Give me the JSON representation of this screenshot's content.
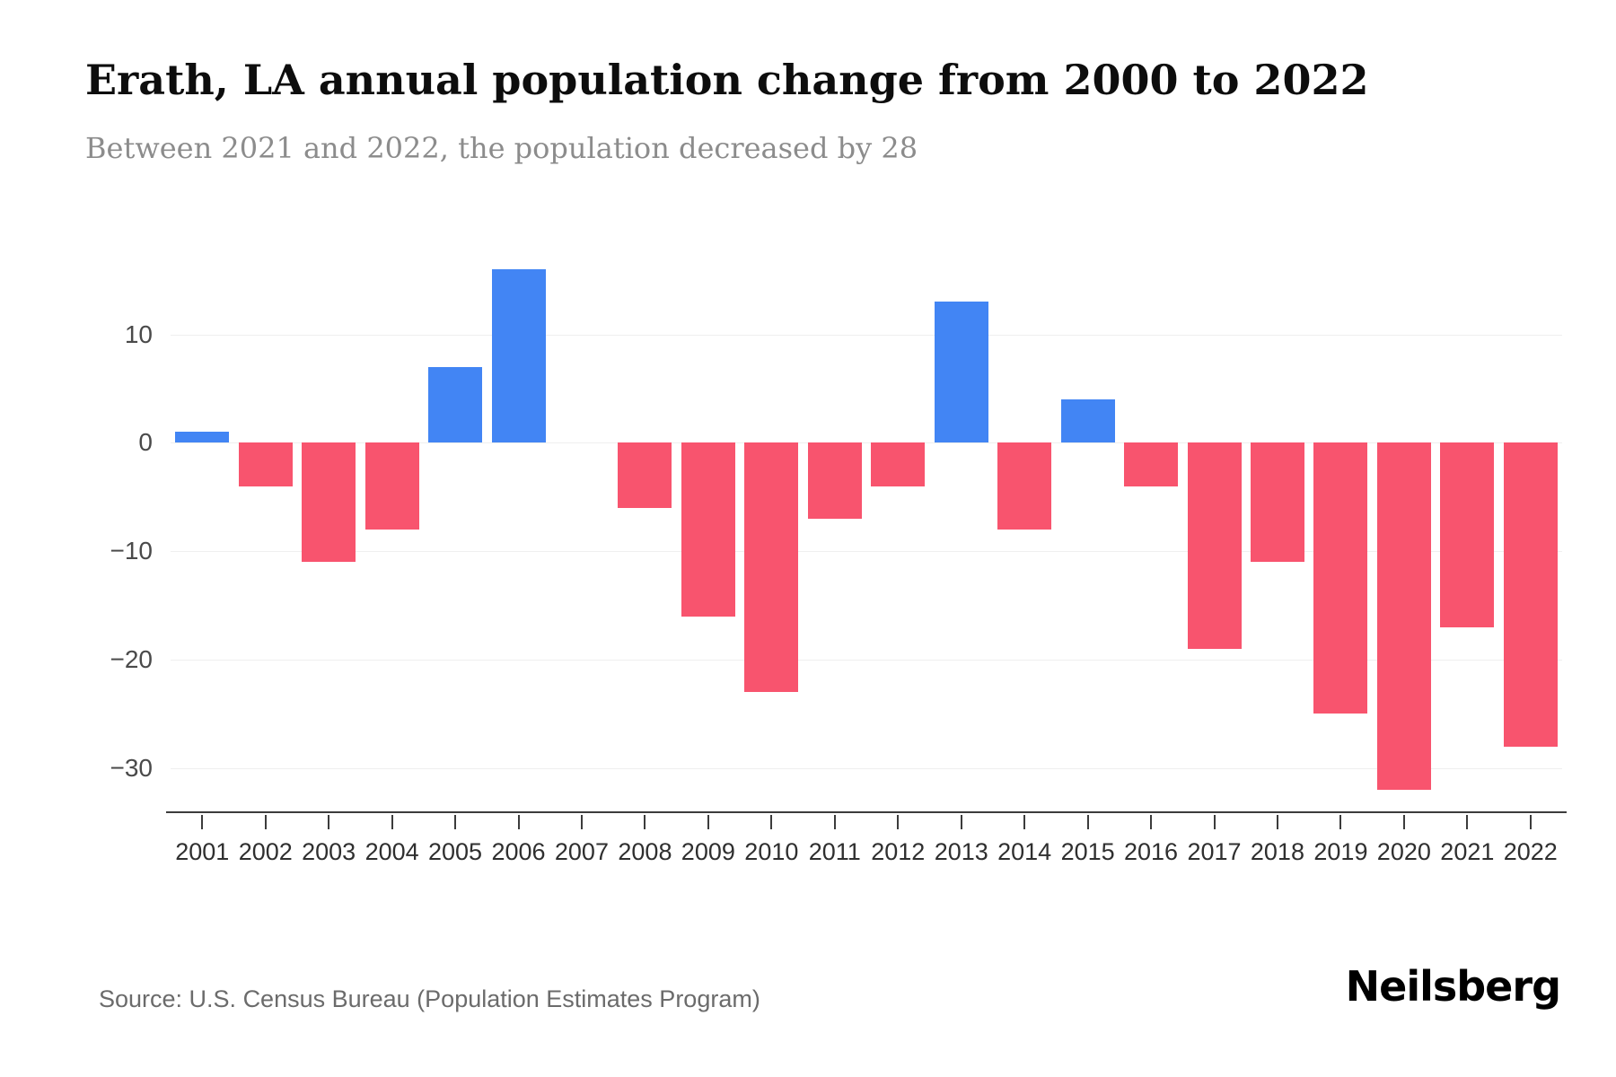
{
  "header": {
    "title": "Erath, LA annual population change from 2000 to 2022",
    "subtitle": "Between 2021 and 2022, the population decreased by 28"
  },
  "footer": {
    "source": "Source: U.S. Census Bureau (Population Estimates Program)",
    "brand": "Neilsberg"
  },
  "chart_data": {
    "type": "bar",
    "title": "Erath, LA annual population change from 2000 to 2022",
    "subtitle": "Between 2021 and 2022, the population decreased by 28",
    "categories": [
      "2001",
      "2002",
      "2003",
      "2004",
      "2005",
      "2006",
      "2007",
      "2008",
      "2009",
      "2010",
      "2011",
      "2012",
      "2013",
      "2014",
      "2015",
      "2016",
      "2017",
      "2018",
      "2019",
      "2020",
      "2021",
      "2022"
    ],
    "values": [
      1,
      -4,
      -11,
      -8,
      7,
      16,
      0,
      -6,
      -16,
      -23,
      -7,
      -4,
      13,
      -8,
      4,
      -4,
      -19,
      -11,
      -25,
      -32,
      -17,
      -28
    ],
    "xlabel": "",
    "ylabel": "",
    "yticks": [
      10,
      0,
      -10,
      -20,
      -30
    ],
    "ylim": [
      -34,
      18
    ],
    "grid": true,
    "legend": false,
    "colors": {
      "positive": "#4285f4",
      "negative": "#f8546e"
    }
  }
}
